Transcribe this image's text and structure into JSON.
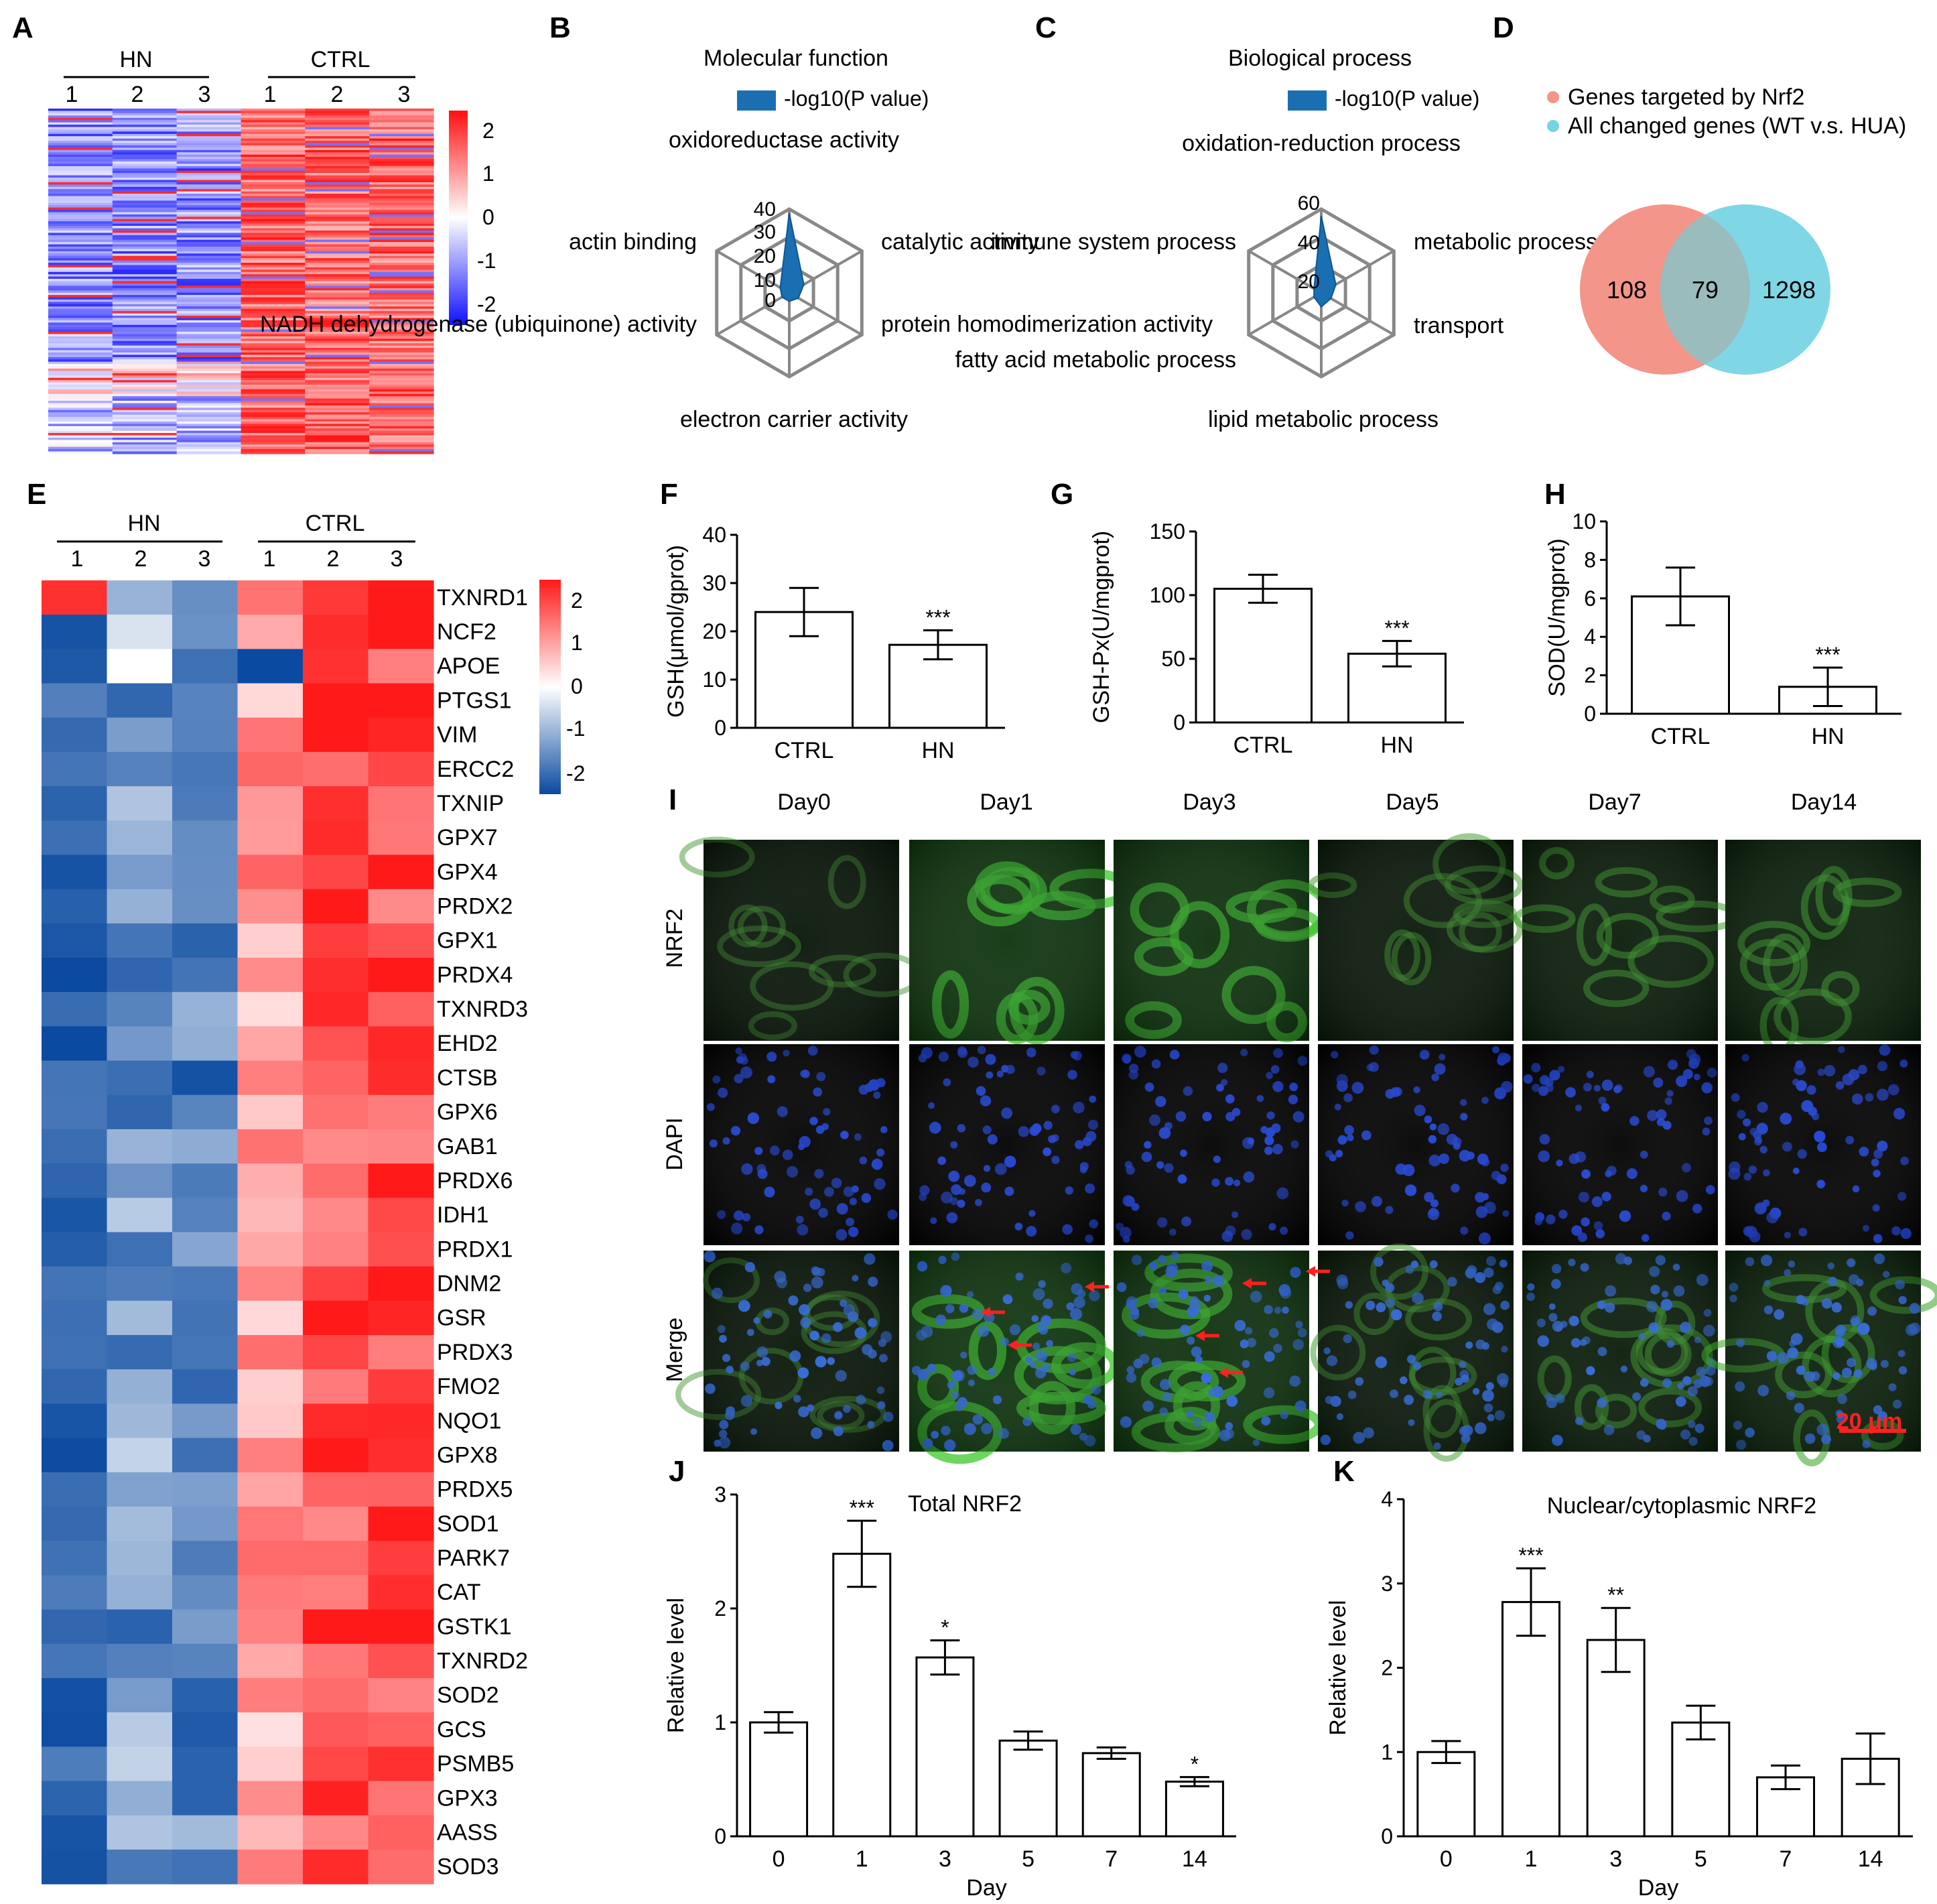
{
  "panel_letters": [
    "A",
    "B",
    "C",
    "D",
    "E",
    "F",
    "G",
    "H",
    "I",
    "J",
    "K"
  ],
  "panelA": {
    "groups": [
      "HN",
      "CTRL"
    ],
    "columns": [
      "1",
      "2",
      "3",
      "1",
      "2",
      "3"
    ],
    "colorbar_ticks": [
      "2",
      "1",
      "0",
      "-1",
      "-2"
    ]
  },
  "panelB": {
    "title": "Molecular function",
    "legend": "-log10(P value)",
    "axes": [
      "oxidoreductase activity",
      "catalytic activity",
      "protein homodimerization activity",
      "electron carrier activity",
      "NADH dehydrogenase (ubiquinone) activity",
      "actin binding"
    ],
    "ticks": [
      "0",
      "10",
      "20",
      "30",
      "40"
    ]
  },
  "panelC": {
    "title": "Biological process",
    "legend": "-log10(P value)",
    "axes": [
      "oxidation-reduction process",
      "metabolic process",
      "transport",
      "lipid metabolic process",
      "fatty acid metabolic process",
      "immune system process"
    ],
    "ticks": [
      "20",
      "40",
      "60"
    ]
  },
  "panelD": {
    "legend": [
      "Genes targeted by Nrf2",
      "All changed genes (WT v.s. HUA)"
    ],
    "counts": [
      "108",
      "79",
      "1298"
    ]
  },
  "panelE": {
    "groups": [
      "HN",
      "CTRL"
    ],
    "columns": [
      "1",
      "2",
      "3",
      "1",
      "2",
      "3"
    ],
    "genes": [
      "TXNRD1",
      "NCF2",
      "APOE",
      "PTGS1",
      "VIM",
      "ERCC2",
      "TXNIP",
      "GPX7",
      "GPX4",
      "PRDX2",
      "GPX1",
      "PRDX4",
      "TXNRD3",
      "EHD2",
      "CTSB",
      "GPX6",
      "GAB1",
      "PRDX6",
      "IDH1",
      "PRDX1",
      "DNM2",
      "GSR",
      "PRDX3",
      "FMO2",
      "NQO1",
      "GPX8",
      "PRDX5",
      "SOD1",
      "PARK7",
      "CAT",
      "GSTK1",
      "TXNRD2",
      "SOD2",
      "GCS",
      "PSMB5",
      "GPX3",
      "AASS",
      "SOD3"
    ],
    "colorbar_ticks": [
      "2",
      "1",
      "0",
      "-1",
      "-2"
    ]
  },
  "panelF": {
    "ylabel": "GSH(μmol/gprot)",
    "categories": [
      "CTRL",
      "HN"
    ],
    "values": [
      24,
      17.2
    ],
    "errors": [
      5,
      3
    ],
    "sig": [
      "",
      "***"
    ],
    "yticks": [
      "0",
      "10",
      "20",
      "30",
      "40"
    ],
    "ylim": [
      0,
      40
    ]
  },
  "panelG": {
    "ylabel": "GSH-Px(U/mgprot)",
    "categories": [
      "CTRL",
      "HN"
    ],
    "values": [
      105,
      54
    ],
    "errors": [
      11,
      10
    ],
    "sig": [
      "",
      "***"
    ],
    "yticks": [
      "0",
      "50",
      "100",
      "150"
    ],
    "ylim": [
      0,
      150
    ]
  },
  "panelH": {
    "ylabel": "SOD(U/mgprot)",
    "categories": [
      "CTRL",
      "HN"
    ],
    "values": [
      6.1,
      1.4
    ],
    "errors": [
      1.5,
      1.0
    ],
    "sig": [
      "",
      "***"
    ],
    "yticks": [
      "0",
      "2",
      "4",
      "6",
      "8",
      "10"
    ],
    "ylim": [
      0,
      10
    ]
  },
  "panelI": {
    "days": [
      "Day0",
      "Day1",
      "Day3",
      "Day5",
      "Day7",
      "Day14"
    ],
    "rows": [
      "NRF2",
      "DAPI",
      "Merge"
    ],
    "scalebar": "20 μm"
  },
  "panelJ": {
    "title": "Total NRF2",
    "ylabel": "Relative level",
    "xlabel": "Day",
    "categories": [
      "0",
      "1",
      "3",
      "5",
      "7",
      "14"
    ],
    "values": [
      1.0,
      2.48,
      1.57,
      0.84,
      0.73,
      0.48
    ],
    "errors": [
      0.09,
      0.29,
      0.15,
      0.08,
      0.05,
      0.04
    ],
    "sig": [
      "",
      "***",
      "*",
      "",
      "",
      "*"
    ],
    "yticks": [
      "0",
      "1",
      "2",
      "3"
    ],
    "ylim": [
      0,
      3
    ]
  },
  "panelK": {
    "title": "Nuclear/cytoplasmic NRF2",
    "ylabel": "Relative level",
    "xlabel": "Day",
    "categories": [
      "0",
      "1",
      "3",
      "5",
      "7",
      "14"
    ],
    "values": [
      1.0,
      2.78,
      2.33,
      1.35,
      0.7,
      0.92
    ],
    "errors": [
      0.13,
      0.4,
      0.38,
      0.2,
      0.14,
      0.3
    ],
    "sig": [
      "",
      "***",
      "**",
      "",
      "",
      ""
    ],
    "yticks": [
      "0",
      "1",
      "2",
      "3",
      "4"
    ],
    "ylim": [
      0,
      4
    ]
  },
  "chart_data": [
    {
      "type": "heatmap",
      "columns": [
        "HN 1",
        "HN 2",
        "HN 3",
        "CTRL 1",
        "CTRL 2",
        "CTRL 3"
      ],
      "scale": [
        -2,
        2
      ]
    },
    {
      "type": "radar",
      "title": "Molecular function",
      "axes": [
        "oxidoreductase activity",
        "catalytic activity",
        "protein homodimerization activity",
        "electron carrier activity",
        "NADH dehydrogenase (ubiquinone) activity",
        "actin binding"
      ],
      "values": [
        38,
        8,
        5,
        4,
        4,
        5
      ],
      "range": [
        0,
        40
      ]
    },
    {
      "type": "radar",
      "title": "Biological process",
      "axes": [
        "oxidation-reduction process",
        "metabolic process",
        "transport",
        "lipid metabolic process",
        "fatty acid metabolic process",
        "immune system process"
      ],
      "values": [
        55,
        12,
        8,
        10,
        6,
        6
      ],
      "range": [
        0,
        60
      ]
    },
    {
      "type": "venn",
      "sets": [
        "Genes targeted by Nrf2",
        "All changed genes (WT v.s. HUA)"
      ],
      "only_a": 108,
      "both": 79,
      "only_b": 1298
    },
    {
      "type": "heatmap",
      "columns": [
        "HN 1",
        "HN 2",
        "HN 3",
        "CTRL 1",
        "CTRL 2",
        "CTRL 3"
      ],
      "scale": [
        -2,
        2
      ]
    },
    {
      "type": "bar",
      "categories": [
        "CTRL",
        "HN"
      ],
      "values": [
        24,
        17.2
      ],
      "ylabel": "GSH(μmol/gprot)",
      "ylim": [
        0,
        40
      ]
    },
    {
      "type": "bar",
      "categories": [
        "CTRL",
        "HN"
      ],
      "values": [
        105,
        54
      ],
      "ylabel": "GSH-Px(U/mgprot)",
      "ylim": [
        0,
        150
      ]
    },
    {
      "type": "bar",
      "categories": [
        "CTRL",
        "HN"
      ],
      "values": [
        6.1,
        1.4
      ],
      "ylabel": "SOD(U/mgprot)",
      "ylim": [
        0,
        10
      ]
    },
    {
      "type": "bar",
      "title": "Total NRF2",
      "categories": [
        "0",
        "1",
        "3",
        "5",
        "7",
        "14"
      ],
      "values": [
        1.0,
        2.48,
        1.57,
        0.84,
        0.73,
        0.48
      ],
      "xlabel": "Day",
      "ylabel": "Relative level",
      "ylim": [
        0,
        3
      ]
    },
    {
      "type": "bar",
      "title": "Nuclear/cytoplasmic NRF2",
      "categories": [
        "0",
        "1",
        "3",
        "5",
        "7",
        "14"
      ],
      "values": [
        1.0,
        2.78,
        2.33,
        1.35,
        0.7,
        0.92
      ],
      "xlabel": "Day",
      "ylabel": "Relative level",
      "ylim": [
        0,
        4
      ]
    }
  ]
}
